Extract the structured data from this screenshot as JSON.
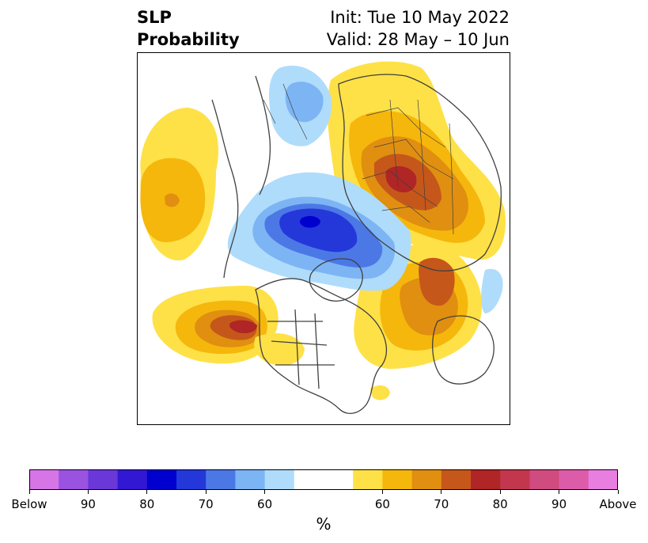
{
  "title": {
    "left_line1": "SLP",
    "left_line2": "Probability",
    "right_line1": "Init: Tue 10 May 2022",
    "right_line2": "Valid: 28 May – 10 Jun"
  },
  "colorbar": {
    "colors": [
      "#d575e6",
      "#9a52e1",
      "#6a38d8",
      "#3218d2",
      "#0000cf",
      "#2438da",
      "#4c78e6",
      "#7db4f4",
      "#afdcfb",
      "#ffffff",
      "#ffffff",
      "#fee147",
      "#f5b70c",
      "#e08f10",
      "#c5571a",
      "#b02525",
      "#c2374e",
      "#cf4b80",
      "#dd5ca9",
      "#e87ee0"
    ],
    "labels": [
      "Below",
      "90",
      "80",
      "70",
      "60",
      "60",
      "70",
      "80",
      "90",
      "Above"
    ],
    "label_bins": [
      0,
      2,
      4,
      6,
      8,
      12,
      14,
      16,
      18,
      20
    ],
    "unit": "%"
  },
  "map": {
    "projection": "north-polar-stereographic",
    "regions": [
      {
        "name": "north-pacific-above-high",
        "color": "#fee147"
      },
      {
        "name": "north-pacific-above-core",
        "color": "#f5b70c"
      },
      {
        "name": "arctic-below-light",
        "color": "#afdcfb"
      },
      {
        "name": "arctic-below-mid",
        "color": "#4c78e6"
      },
      {
        "name": "arctic-below-core",
        "color": "#2438da"
      },
      {
        "name": "scandinavia-russia-above",
        "color": "#c5571a"
      },
      {
        "name": "scandinavia-russia-core",
        "color": "#b02525"
      },
      {
        "name": "north-atlantic-above",
        "color": "#e08f10"
      },
      {
        "name": "northeast-pacific-above-core",
        "color": "#b02525"
      }
    ]
  }
}
